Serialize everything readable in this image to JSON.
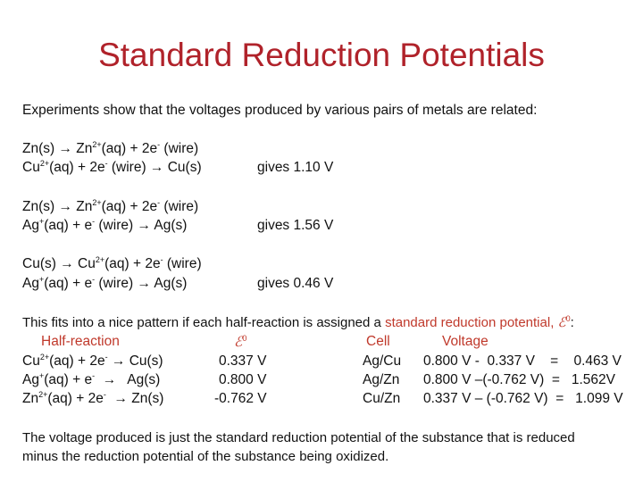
{
  "title": "Standard Reduction Potentials",
  "intro": "Experiments show that the voltages produced by various pairs of metals are related:",
  "pairs": [
    {
      "l1": {
        "a": "Zn(s) → Zn",
        "s1": "2+",
        "b": "(aq) + 2e",
        "s2": "-",
        "c": " (wire)"
      },
      "l2": {
        "a": "Cu",
        "s1": "2+",
        "b": "(aq) + 2e",
        "s2": "-",
        "c": " (wire) → Cu(s)"
      },
      "gives": "gives 1.10 V"
    },
    {
      "l1": {
        "a": "Zn(s) → Zn",
        "s1": "2+",
        "b": "(aq) + 2e",
        "s2": "-",
        "c": " (wire)"
      },
      "l2": {
        "a": "Ag",
        "s1": "+",
        "b": "(aq) + e",
        "s2": "-",
        "c": " (wire) → Ag(s)"
      },
      "gives": "gives 1.56 V"
    },
    {
      "l1": {
        "a": "Cu(s) → Cu",
        "s1": "2+",
        "b": "(aq) + 2e",
        "s2": "-",
        "c": " (wire)"
      },
      "l2": {
        "a": "Ag",
        "s1": "+",
        "b": "(aq) + e",
        "s2": "-",
        "c": " (wire) → Ag(s)"
      },
      "gives": "gives 0.46 V"
    }
  ],
  "pattern": {
    "text": "This fits into a nice pattern if each half-reaction is assigned a ",
    "highlight": "standard reduction potential, ",
    "symbol": "ℰ",
    "sup": "0",
    "colon": ":"
  },
  "table": {
    "headers": {
      "half": "Half-reaction",
      "e0": "ℰ",
      "e0_sup": "0",
      "cell": "Cell",
      "voltage": "Voltage"
    },
    "rows": [
      {
        "a": "Cu",
        "s1": "2+",
        "b": "(aq) + 2e",
        "s2": "-",
        "c": " → Cu(s)",
        "e0": "0.337 V",
        "cell": "Ag/Cu",
        "volt": "0.800 V -  0.337 V    =    0.463 V"
      },
      {
        "a": "Ag",
        "s1": "+",
        "b": "(aq) + e",
        "s2": "-",
        "c": "  →   Ag(s)",
        "e0": "0.800 V",
        "cell": "Ag/Zn",
        "volt": "0.800 V –(-0.762 V)  =   1.562V"
      },
      {
        "a": "Zn",
        "s1": "2+",
        "b": "(aq) + 2e",
        "s2": "-",
        "c": "  → Zn(s)",
        "e0": "-0.762 V",
        "cell": "Cu/Zn",
        "volt": "0.337 V – (-0.762 V)  =   1.099 V"
      }
    ]
  },
  "conclusion": {
    "l1": "The voltage produced is just the standard reduction potential of the substance that is reduced",
    "l2": "minus the reduction potential of the substance being oxidized."
  },
  "colors": {
    "title": "#b0222a",
    "highlight": "#c0392b"
  }
}
